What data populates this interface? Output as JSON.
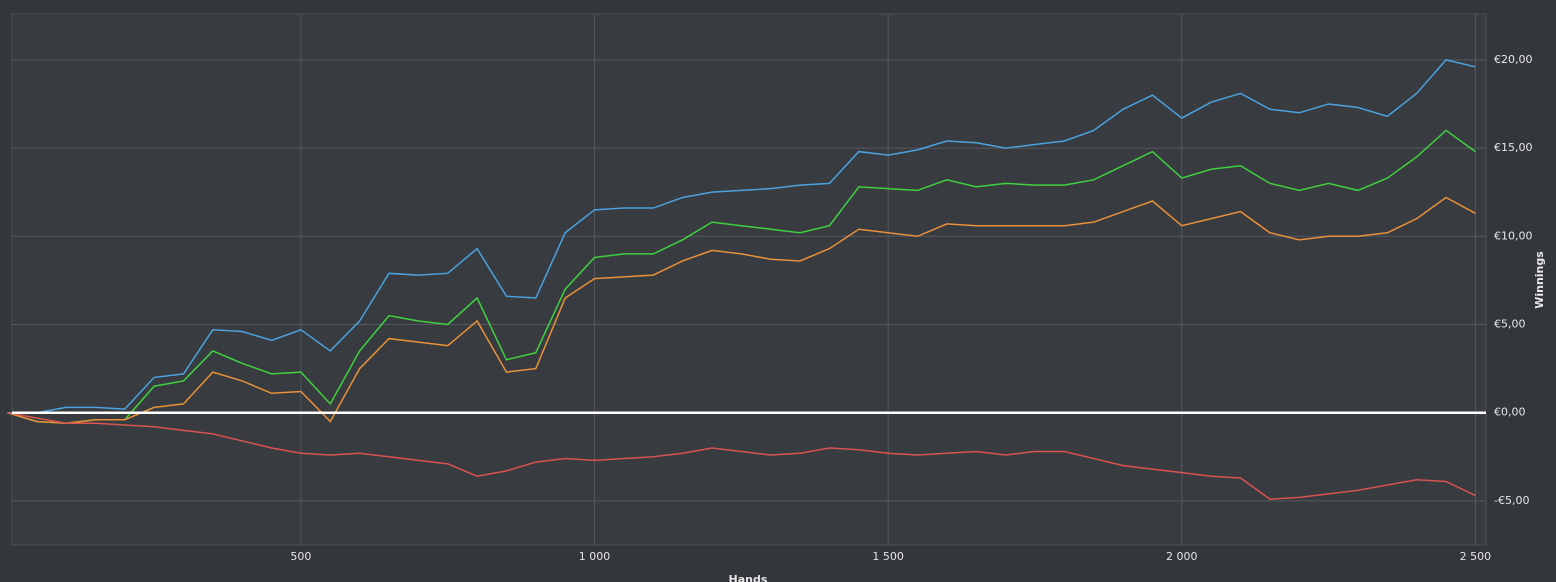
{
  "chart_data": {
    "type": "line",
    "x_label": "Hands",
    "y_label": "Winnings",
    "x": [
      0,
      50,
      100,
      150,
      200,
      250,
      300,
      350,
      400,
      450,
      500,
      550,
      600,
      650,
      700,
      750,
      800,
      850,
      900,
      950,
      1000,
      1050,
      1100,
      1150,
      1200,
      1250,
      1300,
      1350,
      1400,
      1450,
      1500,
      1550,
      1600,
      1650,
      1700,
      1750,
      1800,
      1850,
      1900,
      1950,
      2000,
      2050,
      2100,
      2150,
      2200,
      2250,
      2300,
      2350,
      2400,
      2450,
      2500
    ],
    "series": [
      {
        "color": "#4aa3df",
        "values": [
          0,
          0,
          0.3,
          0.3,
          0.2,
          2.0,
          2.2,
          4.7,
          4.6,
          4.1,
          4.7,
          3.5,
          5.2,
          7.9,
          7.8,
          7.9,
          9.3,
          6.6,
          6.5,
          10.2,
          11.5,
          11.6,
          11.6,
          12.2,
          12.5,
          12.6,
          12.7,
          12.9,
          13.0,
          14.8,
          14.6,
          14.9,
          15.4,
          15.3,
          15.0,
          15.2,
          15.4,
          16.0,
          17.2,
          18.0,
          16.7,
          17.6,
          18.1,
          17.2,
          17.0,
          17.5,
          17.3,
          16.8,
          18.1,
          20.0,
          19.6
        ]
      },
      {
        "color": "#3fd13f",
        "values": [
          0,
          -0.5,
          -0.6,
          -0.4,
          -0.4,
          1.5,
          1.8,
          3.5,
          2.8,
          2.2,
          2.3,
          0.5,
          3.5,
          5.5,
          5.2,
          5.0,
          6.5,
          3.0,
          3.4,
          7.0,
          8.8,
          9.0,
          9.0,
          9.8,
          10.8,
          10.6,
          10.4,
          10.2,
          10.6,
          12.8,
          12.7,
          12.6,
          13.2,
          12.8,
          13.0,
          12.9,
          12.9,
          13.2,
          14.0,
          14.8,
          13.3,
          13.8,
          14.0,
          13.0,
          12.6,
          13.0,
          12.6,
          13.3,
          14.5,
          16.0,
          14.8
        ]
      },
      {
        "color": "#e8913a",
        "values": [
          0,
          -0.5,
          -0.6,
          -0.4,
          -0.4,
          0.3,
          0.5,
          2.3,
          1.8,
          1.1,
          1.2,
          -0.5,
          2.5,
          4.2,
          4.0,
          3.8,
          5.2,
          2.3,
          2.5,
          6.5,
          7.6,
          7.7,
          7.8,
          8.6,
          9.2,
          9.0,
          8.7,
          8.6,
          9.3,
          10.4,
          10.2,
          10.0,
          10.7,
          10.6,
          10.6,
          10.6,
          10.6,
          10.8,
          11.4,
          12.0,
          10.6,
          11.0,
          11.4,
          10.2,
          9.8,
          10.0,
          10.0,
          10.2,
          11.0,
          12.2,
          11.3
        ]
      },
      {
        "color": "#d9534f",
        "values": [
          0,
          -0.3,
          -0.6,
          -0.6,
          -0.7,
          -0.8,
          -1.0,
          -1.2,
          -1.6,
          -2.0,
          -2.3,
          -2.4,
          -2.3,
          -2.5,
          -2.7,
          -2.9,
          -3.6,
          -3.3,
          -2.8,
          -2.6,
          -2.7,
          -2.6,
          -2.5,
          -2.3,
          -2.0,
          -2.2,
          -2.4,
          -2.3,
          -2.0,
          -2.1,
          -2.3,
          -2.4,
          -2.3,
          -2.2,
          -2.4,
          -2.2,
          -2.2,
          -2.6,
          -3.0,
          -3.2,
          -3.4,
          -3.6,
          -3.7,
          -4.9,
          -4.8,
          -4.6,
          -4.4,
          -4.1,
          -3.8,
          -3.9,
          -4.7
        ]
      }
    ],
    "xlim": [
      8,
      2518
    ],
    "xticks": [
      500,
      {
        "value": 1000,
        "label": "1 000"
      },
      {
        "value": 1500,
        "label": "1 500"
      },
      {
        "value": 2000,
        "label": "2 000"
      },
      {
        "value": 2500,
        "label": "2 500"
      }
    ],
    "ylim": [
      -7.5,
      22.6
    ],
    "yticks": [
      {
        "value": -5,
        "label": "-€5,00"
      },
      {
        "value": 0,
        "label": "€0,00"
      },
      {
        "value": 5,
        "label": "€5,00"
      },
      {
        "value": 10,
        "label": "€10,00"
      },
      {
        "value": 15,
        "label": "€15,00"
      },
      {
        "value": 20,
        "label": "€20,00"
      }
    ],
    "grid": true,
    "zero_line": true
  }
}
